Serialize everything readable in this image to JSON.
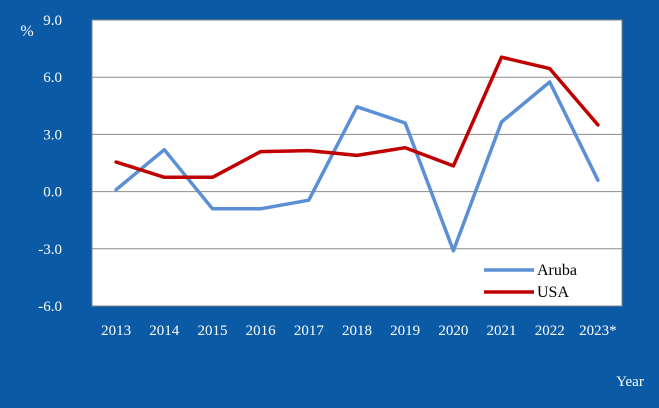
{
  "chart_data": {
    "type": "line",
    "categories": [
      "2013",
      "2014",
      "2015",
      "2016",
      "2017",
      "2018",
      "2019",
      "2020",
      "2021",
      "2022",
      "2023*"
    ],
    "series": [
      {
        "name": "Aruba",
        "color": "#5b8fd6",
        "values": [
          0.1,
          2.2,
          -0.9,
          -0.9,
          -0.45,
          4.45,
          3.6,
          -3.1,
          3.65,
          5.75,
          0.6
        ]
      },
      {
        "name": "USA",
        "color": "#c00000",
        "values": [
          1.55,
          0.75,
          0.75,
          2.1,
          2.15,
          1.9,
          2.3,
          1.35,
          7.05,
          6.45,
          3.5
        ]
      }
    ],
    "yticks": [
      "9.0",
      "6.0",
      "3.0",
      "0.0",
      "-3.0",
      "-6.0"
    ],
    "ylim": [
      -6,
      9
    ],
    "ylabel": "%",
    "xlabel": "Year",
    "grid": true,
    "legend": "bottom-right"
  }
}
